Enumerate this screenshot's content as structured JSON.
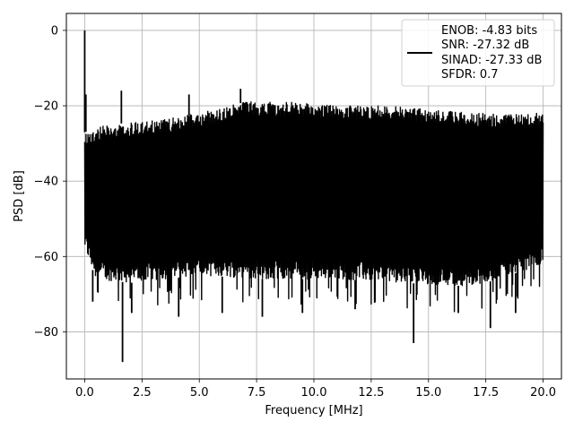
{
  "chart_data": {
    "type": "line",
    "title": "",
    "xlabel": "Frequency [MHz]",
    "ylabel": "PSD [dB]",
    "xlim": [
      -0.8,
      20.8
    ],
    "ylim": [
      -92.5,
      4.5
    ],
    "grid": true,
    "legend_position": "top-right",
    "x_ticks": [
      0.0,
      2.5,
      5.0,
      7.5,
      10.0,
      12.5,
      15.0,
      17.5,
      20.0
    ],
    "x_tick_labels": [
      "0.0",
      "2.5",
      "5.0",
      "7.5",
      "10.0",
      "12.5",
      "15.0",
      "17.5",
      "20.0"
    ],
    "y_ticks": [
      0,
      -20,
      -40,
      -60,
      -80
    ],
    "y_tick_labels": [
      "0",
      "−20",
      "−40",
      "−60",
      "−80"
    ],
    "legend": {
      "lines": [
        "ENOB: -4.83 bits",
        "SNR: -27.32 dB",
        "SINAD: -27.33 dB",
        "SFDR: 0.7"
      ]
    },
    "series": [
      {
        "color": "#000000",
        "x_range": [
          0.0,
          20.0
        ],
        "dc_peak": 0.0,
        "upper_envelope": [
          [
            0.0,
            -27
          ],
          [
            1.0,
            -25
          ],
          [
            3.0,
            -24
          ],
          [
            5.0,
            -22
          ],
          [
            7.0,
            -19
          ],
          [
            9.0,
            -19
          ],
          [
            11.0,
            -20
          ],
          [
            13.0,
            -20
          ],
          [
            15.0,
            -21
          ],
          [
            17.0,
            -22
          ],
          [
            20.0,
            -22
          ]
        ],
        "lower_envelope": [
          [
            0.0,
            -58
          ],
          [
            0.5,
            -66
          ],
          [
            2.0,
            -67
          ],
          [
            5.0,
            -65
          ],
          [
            8.0,
            -66
          ],
          [
            11.0,
            -66
          ],
          [
            14.0,
            -67
          ],
          [
            17.0,
            -68
          ],
          [
            20.0,
            -62
          ]
        ],
        "spikes": [
          {
            "x": 0.0,
            "y": 0.0
          },
          {
            "x": 0.05,
            "y": -17
          },
          {
            "x": 1.6,
            "y": -16
          },
          {
            "x": 4.55,
            "y": -17
          },
          {
            "x": 6.8,
            "y": -15.5
          },
          {
            "x": 0.35,
            "y": -72
          },
          {
            "x": 1.65,
            "y": -88
          },
          {
            "x": 2.05,
            "y": -75
          },
          {
            "x": 4.1,
            "y": -76
          },
          {
            "x": 6.0,
            "y": -75
          },
          {
            "x": 7.75,
            "y": -76
          },
          {
            "x": 9.5,
            "y": -75
          },
          {
            "x": 11.8,
            "y": -74
          },
          {
            "x": 14.35,
            "y": -83
          },
          {
            "x": 16.3,
            "y": -75
          },
          {
            "x": 17.7,
            "y": -79
          },
          {
            "x": 18.8,
            "y": -75
          }
        ]
      }
    ]
  }
}
